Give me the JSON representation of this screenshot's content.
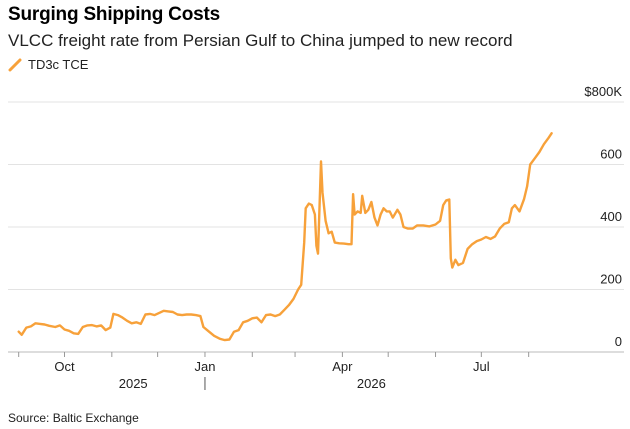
{
  "title": "Surging Shipping Costs",
  "subtitle": "VLCC freight rate from Persian Gulf to China jumped to new record",
  "source": "Source: Baltic Exchange",
  "chart_data": {
    "type": "line",
    "series": [
      {
        "name": "TD3c TCE",
        "color": "#f7a13a",
        "points": [
          [
            "2025-09-01",
            65
          ],
          [
            "2025-09-03",
            55
          ],
          [
            "2025-09-06",
            78
          ],
          [
            "2025-09-09",
            82
          ],
          [
            "2025-09-12",
            92
          ],
          [
            "2025-09-15",
            90
          ],
          [
            "2025-09-18",
            88
          ],
          [
            "2025-09-21",
            84
          ],
          [
            "2025-09-25",
            80
          ],
          [
            "2025-09-28",
            85
          ],
          [
            "2025-10-01",
            72
          ],
          [
            "2025-10-04",
            68
          ],
          [
            "2025-10-07",
            60
          ],
          [
            "2025-10-10",
            58
          ],
          [
            "2025-10-13",
            80
          ],
          [
            "2025-10-16",
            85
          ],
          [
            "2025-10-19",
            86
          ],
          [
            "2025-10-22",
            82
          ],
          [
            "2025-10-25",
            85
          ],
          [
            "2025-10-28",
            70
          ],
          [
            "2025-10-31",
            78
          ],
          [
            "2025-11-02",
            122
          ],
          [
            "2025-11-05",
            118
          ],
          [
            "2025-11-08",
            110
          ],
          [
            "2025-11-11",
            100
          ],
          [
            "2025-11-14",
            92
          ],
          [
            "2025-11-17",
            95
          ],
          [
            "2025-11-20",
            90
          ],
          [
            "2025-11-23",
            120
          ],
          [
            "2025-11-26",
            122
          ],
          [
            "2025-11-29",
            118
          ],
          [
            "2025-12-02",
            125
          ],
          [
            "2025-12-05",
            132
          ],
          [
            "2025-12-08",
            130
          ],
          [
            "2025-12-11",
            128
          ],
          [
            "2025-12-14",
            120
          ],
          [
            "2025-12-17",
            118
          ],
          [
            "2025-12-20",
            120
          ],
          [
            "2025-12-23",
            120
          ],
          [
            "2025-12-26",
            118
          ],
          [
            "2025-12-29",
            115
          ],
          [
            "2025-12-31",
            80
          ],
          [
            "2026-01-03",
            68
          ],
          [
            "2026-01-07",
            52
          ],
          [
            "2026-01-11",
            42
          ],
          [
            "2026-01-14",
            38
          ],
          [
            "2026-01-17",
            40
          ],
          [
            "2026-01-20",
            65
          ],
          [
            "2026-01-23",
            70
          ],
          [
            "2026-01-26",
            95
          ],
          [
            "2026-01-29",
            100
          ],
          [
            "2026-02-01",
            108
          ],
          [
            "2026-02-04",
            110
          ],
          [
            "2026-02-07",
            95
          ],
          [
            "2026-02-10",
            118
          ],
          [
            "2026-02-13",
            120
          ],
          [
            "2026-02-16",
            115
          ],
          [
            "2026-02-19",
            120
          ],
          [
            "2026-02-22",
            135
          ],
          [
            "2026-02-25",
            150
          ],
          [
            "2026-02-28",
            170
          ],
          [
            "2026-03-03",
            200
          ],
          [
            "2026-03-05",
            215
          ],
          [
            "2026-03-07",
            350
          ],
          [
            "2026-03-08",
            460
          ],
          [
            "2026-03-10",
            475
          ],
          [
            "2026-03-12",
            470
          ],
          [
            "2026-03-14",
            440
          ],
          [
            "2026-03-15",
            340
          ],
          [
            "2026-03-16",
            315
          ],
          [
            "2026-03-18",
            610
          ],
          [
            "2026-03-19",
            510
          ],
          [
            "2026-03-21",
            420
          ],
          [
            "2026-03-23",
            380
          ],
          [
            "2026-03-25",
            385
          ],
          [
            "2026-03-27",
            350
          ],
          [
            "2026-03-30",
            348
          ],
          [
            "2026-04-02",
            347
          ],
          [
            "2026-04-05",
            345
          ],
          [
            "2026-04-07",
            345
          ],
          [
            "2026-04-08",
            505
          ],
          [
            "2026-04-09",
            440
          ],
          [
            "2026-04-11",
            450
          ],
          [
            "2026-04-13",
            445
          ],
          [
            "2026-04-14",
            500
          ],
          [
            "2026-04-16",
            445
          ],
          [
            "2026-04-18",
            455
          ],
          [
            "2026-04-20",
            480
          ],
          [
            "2026-04-22",
            430
          ],
          [
            "2026-04-24",
            405
          ],
          [
            "2026-04-26",
            440
          ],
          [
            "2026-04-28",
            460
          ],
          [
            "2026-04-30",
            450
          ],
          [
            "2026-05-02",
            450
          ],
          [
            "2026-05-04",
            430
          ],
          [
            "2026-05-07",
            455
          ],
          [
            "2026-05-09",
            440
          ],
          [
            "2026-05-11",
            400
          ],
          [
            "2026-05-14",
            395
          ],
          [
            "2026-05-17",
            395
          ],
          [
            "2026-05-20",
            405
          ],
          [
            "2026-05-24",
            405
          ],
          [
            "2026-05-28",
            402
          ],
          [
            "2026-06-01",
            408
          ],
          [
            "2026-06-04",
            420
          ],
          [
            "2026-06-06",
            470
          ],
          [
            "2026-06-08",
            485
          ],
          [
            "2026-06-10",
            488
          ],
          [
            "2026-06-11",
            300
          ],
          [
            "2026-06-12",
            270
          ],
          [
            "2026-06-14",
            295
          ],
          [
            "2026-06-16",
            278
          ],
          [
            "2026-06-19",
            285
          ],
          [
            "2026-06-22",
            330
          ],
          [
            "2026-06-25",
            345
          ],
          [
            "2026-06-28",
            355
          ],
          [
            "2026-07-01",
            360
          ],
          [
            "2026-07-04",
            368
          ],
          [
            "2026-07-07",
            362
          ],
          [
            "2026-07-10",
            370
          ],
          [
            "2026-07-13",
            395
          ],
          [
            "2026-07-16",
            410
          ],
          [
            "2026-07-19",
            415
          ],
          [
            "2026-07-21",
            460
          ],
          [
            "2026-07-23",
            470
          ],
          [
            "2026-07-26",
            450
          ],
          [
            "2026-07-29",
            490
          ],
          [
            "2026-07-31",
            530
          ],
          [
            "2026-08-02",
            600
          ],
          [
            "2026-08-05",
            620
          ],
          [
            "2026-08-08",
            640
          ],
          [
            "2026-08-11",
            665
          ],
          [
            "2026-08-14",
            685
          ],
          [
            "2026-08-16",
            700
          ]
        ]
      }
    ],
    "x_ticks": [
      {
        "date": "2025-10-01",
        "label": "Oct"
      },
      {
        "date": "2026-01-01",
        "label": "Jan"
      },
      {
        "date": "2026-04-01",
        "label": "Apr"
      },
      {
        "date": "2026-07-01",
        "label": "Jul"
      }
    ],
    "x_minor_ticks": [
      "2025-09-01",
      "2025-10-01",
      "2025-11-01",
      "2025-12-01",
      "2026-01-01",
      "2026-02-01",
      "2026-03-01",
      "2026-04-01",
      "2026-05-01",
      "2026-06-01",
      "2026-07-01",
      "2026-08-01"
    ],
    "year_labels": [
      {
        "date": "2025-11-15",
        "label": "2025"
      },
      {
        "date": "2026-04-20",
        "label": "2026"
      }
    ],
    "year_boundary": "2026-01-01",
    "x_range": [
      "2025-08-25",
      "2026-09-01"
    ],
    "y_ticks": [
      {
        "value": 0,
        "label": "0"
      },
      {
        "value": 200,
        "label": "200"
      },
      {
        "value": 400,
        "label": "400"
      },
      {
        "value": 600,
        "label": "600"
      },
      {
        "value": 800,
        "label": "$800K"
      }
    ],
    "ylim": [
      0,
      800
    ],
    "grid": true,
    "legend": "top-left"
  }
}
